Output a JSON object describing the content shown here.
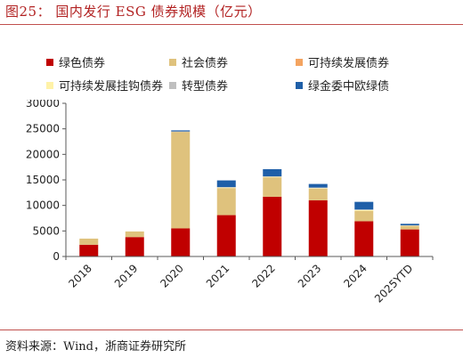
{
  "figure": {
    "title": "图25： 国内发行 ESG 债券规模（亿元）",
    "source": "资料来源：Wind，浙商证券研究所"
  },
  "chart_data": {
    "type": "bar",
    "stacked": true,
    "categories": [
      "2018",
      "2019",
      "2020",
      "2021",
      "2022",
      "2023",
      "2024",
      "2025YTD"
    ],
    "ylim": [
      0,
      30000
    ],
    "yticks": [
      0,
      5000,
      10000,
      15000,
      20000,
      25000,
      30000
    ],
    "legend_position": "top",
    "grid": false,
    "series": [
      {
        "name": "绿色债券",
        "color": "#c00000",
        "values": [
          2300,
          3800,
          5500,
          8100,
          11700,
          11000,
          6900,
          5300
        ]
      },
      {
        "name": "社会债券",
        "color": "#dfc27d",
        "values": [
          1200,
          1100,
          18900,
          5300,
          3800,
          2300,
          2000,
          700
        ]
      },
      {
        "name": "可持续发展债券",
        "color": "#f4a460",
        "values": [
          0,
          0,
          0,
          0,
          0,
          0,
          0,
          0
        ]
      },
      {
        "name": "可持续发展挂钩债券",
        "color": "#fff2a8",
        "values": [
          0,
          0,
          0,
          100,
          100,
          100,
          200,
          50
        ]
      },
      {
        "name": "转型债券",
        "color": "#bfbfbf",
        "values": [
          0,
          0,
          100,
          100,
          100,
          100,
          100,
          50
        ]
      },
      {
        "name": "绿金委中欧绿债",
        "color": "#1f5fa8",
        "values": [
          0,
          0,
          200,
          1300,
          1400,
          700,
          1500,
          300
        ]
      }
    ]
  }
}
